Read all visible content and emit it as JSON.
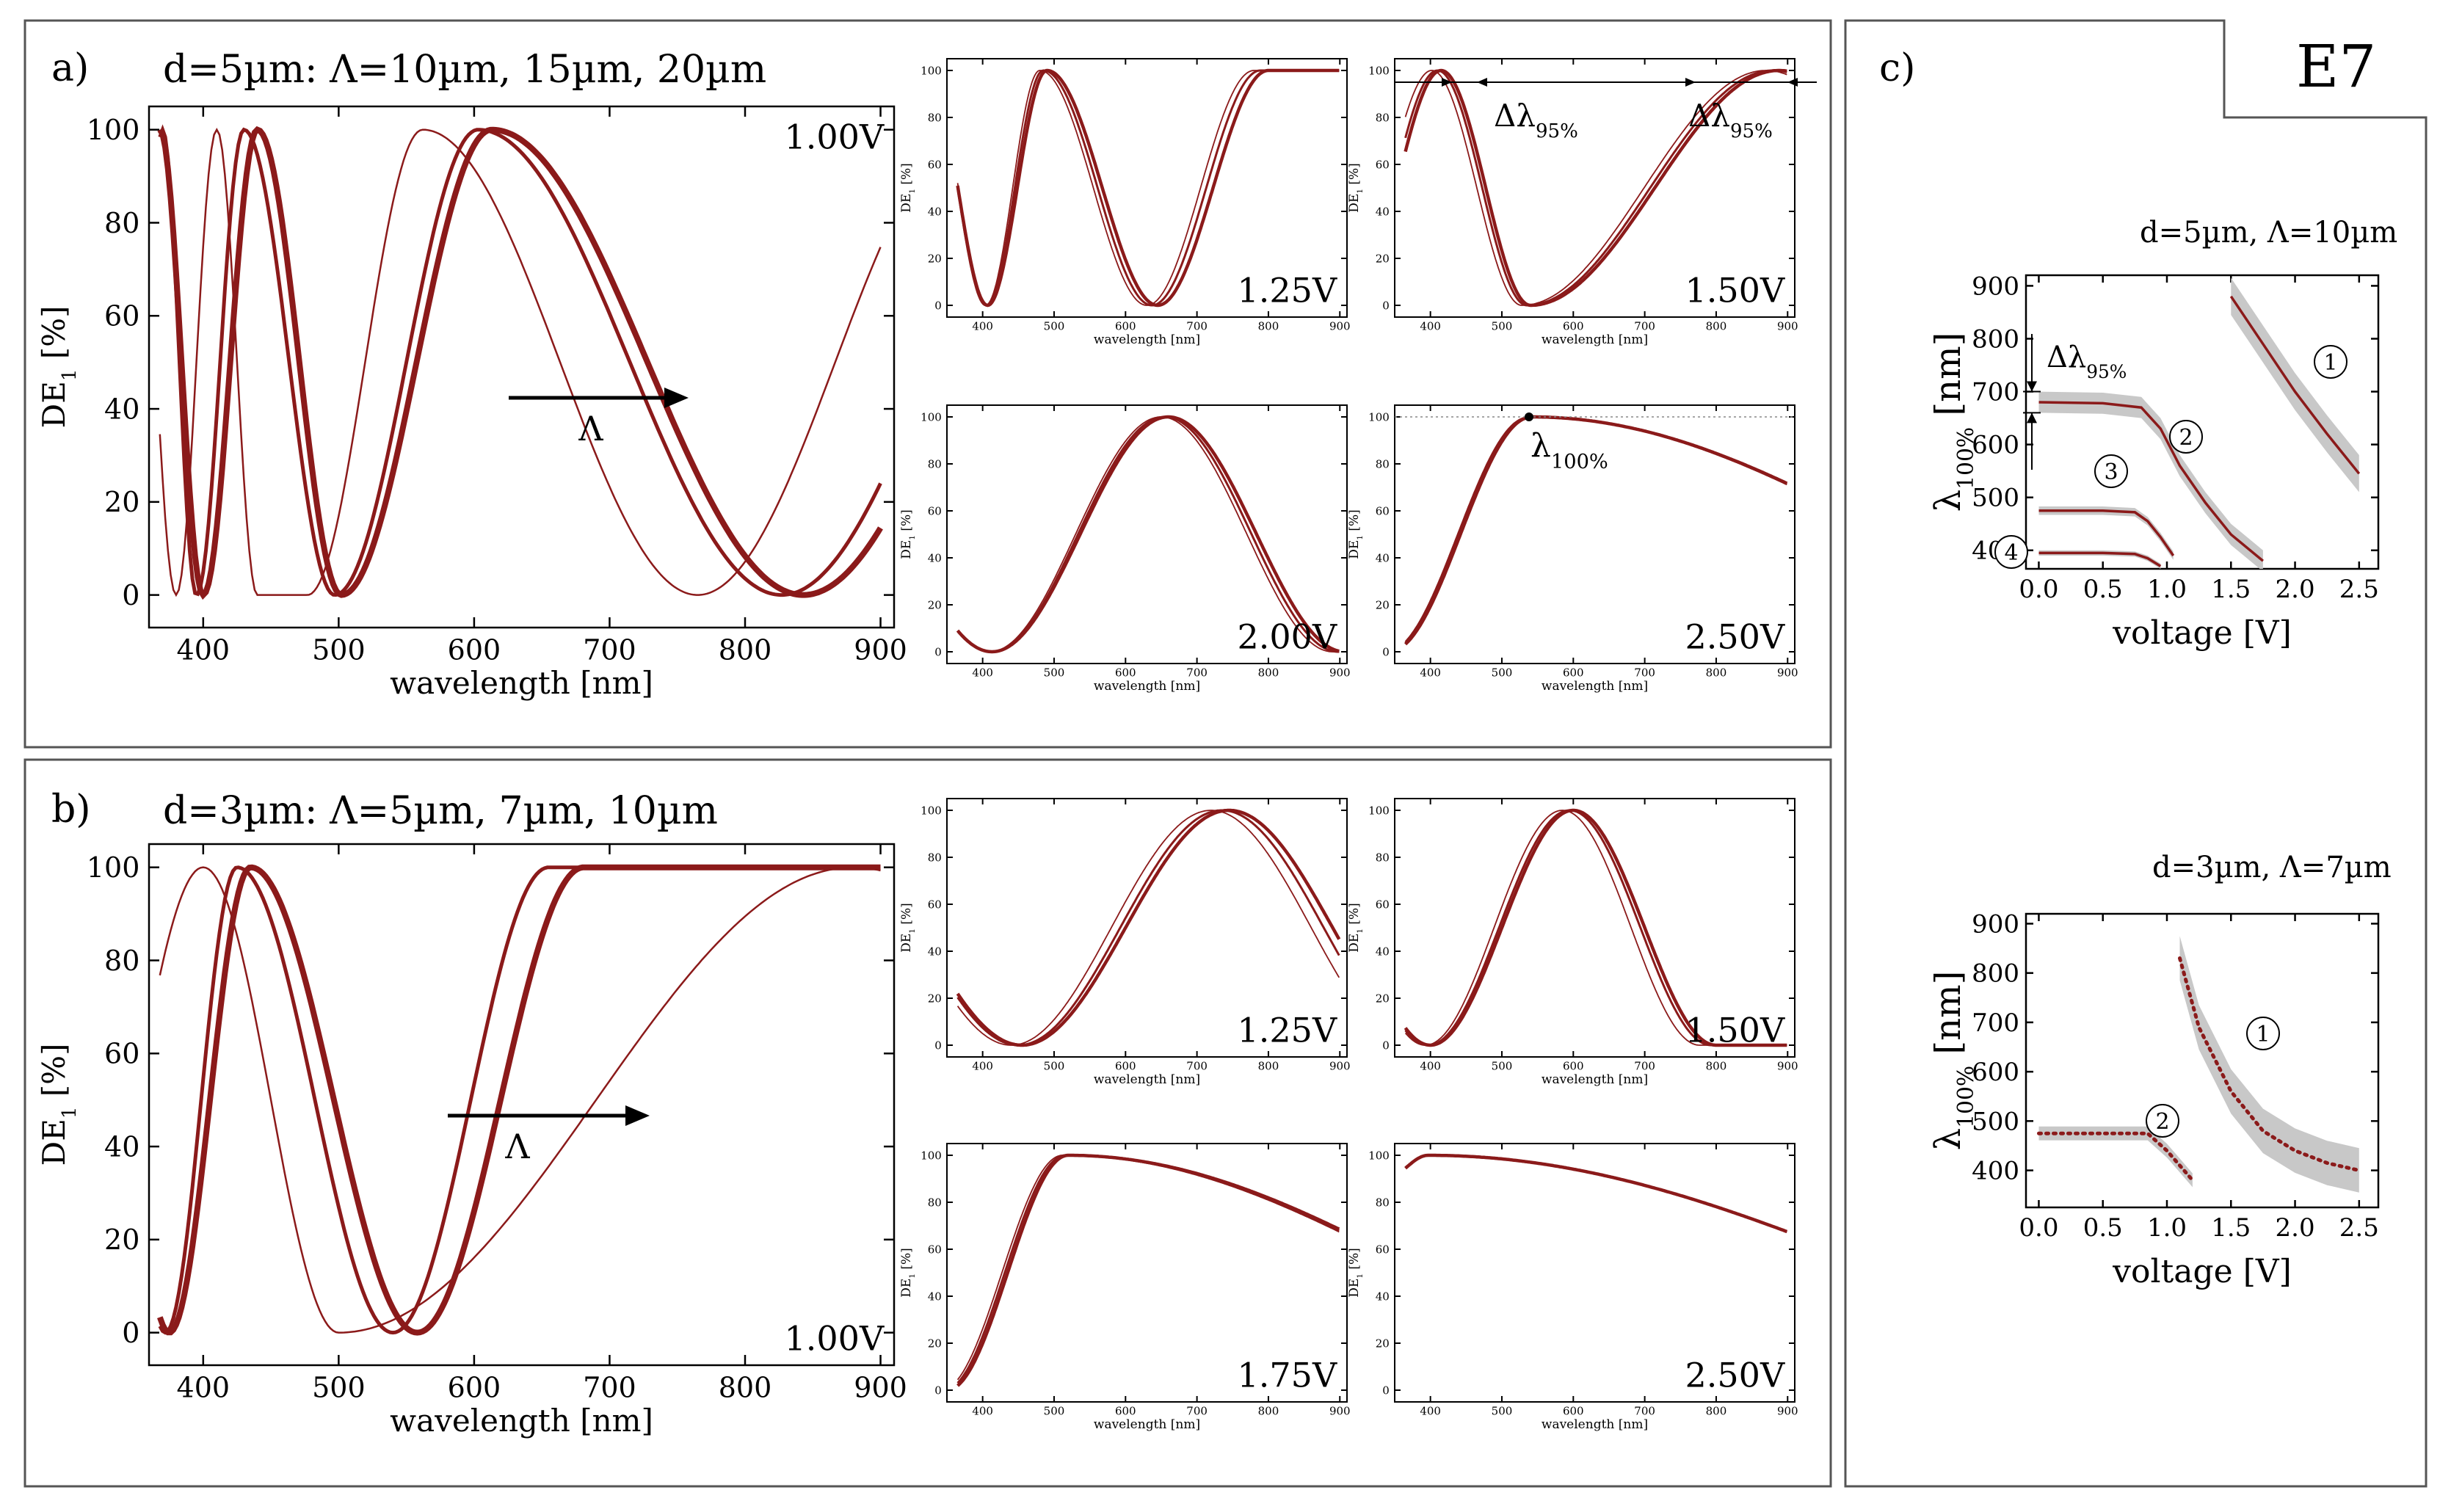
{
  "figure": {
    "panel_labels": {
      "a": "a)",
      "b": "b)",
      "c": "c)"
    },
    "tag": "E7",
    "titles": {
      "a": "d=5µm: Λ=10µm, 15µm, 20µm",
      "b": "d=3µm: Λ=5µm, 7µm, 10µm",
      "c_top": "d=5µm, Λ=10µm",
      "c_bottom": "d=3µm, Λ=7µm"
    },
    "axis_text": {
      "wavelength_label": "wavelength [nm]",
      "de_label_main": "DE",
      "de_label_sub": "1",
      "de_label_unit": " [%]",
      "voltage_label": "voltage [V]",
      "lambda_label_main": "λ",
      "lambda_label_sub": "100%",
      "lambda_label_unit": " [nm]",
      "lambda_arrow": "Λ"
    },
    "annotations": {
      "delta_main": "Δλ",
      "delta_sub": "95%",
      "lambda100_main": "λ",
      "lambda100_sub": "100%"
    },
    "colors": {
      "curve": "#8b1a1a",
      "band": "#c8c8c8",
      "frame": "#555555"
    }
  },
  "chart_data": [
    {
      "id": "a-main",
      "type": "line",
      "title": "a) d=5µm",
      "voltage": "1.00V",
      "xlabel": "wavelength [nm]",
      "ylabel": "DE1 [%]",
      "xlim": [
        360,
        910
      ],
      "ylim": [
        -7,
        105
      ],
      "xticks": [
        400,
        500,
        600,
        700,
        800,
        900
      ],
      "yticks": [
        0,
        20,
        40,
        60,
        80,
        100
      ],
      "series": [
        {
          "name": "Λ=10µm",
          "minima": [
            380,
            440,
            477,
            765
          ],
          "maxima": [
            410,
            562
          ]
        },
        {
          "name": "Λ=15µm",
          "minima": [
            395,
            497,
            827
          ],
          "maxima": [
            370,
            430,
            603
          ]
        },
        {
          "name": "Λ=20µm",
          "minima": [
            400,
            502,
            843
          ],
          "maxima": [
            368,
            440,
            613
          ]
        }
      ]
    },
    {
      "id": "a-125",
      "type": "line",
      "voltage": "1.25V",
      "xlabel": "wavelength [nm]",
      "xlim": [
        350,
        910
      ],
      "ylim": [
        -5,
        105
      ],
      "xticks": [
        400,
        500,
        600,
        700,
        800,
        900
      ],
      "yticks": [
        0,
        20,
        40,
        60,
        80,
        100
      ],
      "series": [
        {
          "name": "Λ=10µm",
          "minima": [
            404,
            630
          ],
          "maxima": [
            480
          ]
        },
        {
          "name": "Λ=15µm",
          "minima": [
            405,
            637
          ],
          "maxima": [
            485
          ]
        },
        {
          "name": "Λ=20µm",
          "minima": [
            407,
            645
          ],
          "maxima": [
            490
          ]
        }
      ]
    },
    {
      "id": "a-150",
      "type": "line",
      "voltage": "1.50V",
      "xlabel": "wavelength [nm]",
      "xlim": [
        350,
        910
      ],
      "ylim": [
        -5,
        105
      ],
      "xticks": [
        400,
        500,
        600,
        700,
        800,
        900
      ],
      "yticks": [
        0,
        20,
        40,
        60,
        80,
        100
      ],
      "series": [
        {
          "name": "Λ=10µm",
          "minima": [
            528
          ],
          "maxima": [
            402,
            870
          ]
        },
        {
          "name": "Λ=15µm",
          "minima": [
            535
          ],
          "maxima": [
            410,
            880
          ]
        },
        {
          "name": "Λ=20µm",
          "minima": [
            540
          ],
          "maxima": [
            415,
            888
          ]
        }
      ]
    },
    {
      "id": "a-200",
      "type": "line",
      "voltage": "2.00V",
      "xlabel": "wavelength [nm]",
      "xlim": [
        350,
        910
      ],
      "ylim": [
        -5,
        105
      ],
      "xticks": [
        400,
        500,
        600,
        700,
        800,
        900
      ],
      "yticks": [
        0,
        20,
        40,
        60,
        80,
        100
      ],
      "series": [
        {
          "name": "Λ=10µm",
          "minima": [
            410
          ],
          "maxima": [
            650
          ]
        },
        {
          "name": "Λ=15µm",
          "minima": [
            412
          ],
          "maxima": [
            655
          ]
        },
        {
          "name": "Λ=20µm",
          "minima": [
            413
          ],
          "maxima": [
            660
          ]
        }
      ]
    },
    {
      "id": "a-250",
      "type": "line",
      "voltage": "2.50V",
      "xlabel": "wavelength [nm]",
      "xlim": [
        350,
        910
      ],
      "ylim": [
        -5,
        105
      ],
      "xticks": [
        400,
        500,
        600,
        700,
        800,
        900
      ],
      "yticks": [
        0,
        20,
        40,
        60,
        80,
        100
      ],
      "series": [
        {
          "name": "Λ=10µm",
          "minima": [],
          "maxima": [
            538
          ]
        },
        {
          "name": "Λ=15µm",
          "minima": [],
          "maxima": [
            540
          ]
        },
        {
          "name": "Λ=20µm",
          "minima": [],
          "maxima": [
            542
          ]
        }
      ]
    },
    {
      "id": "b-main",
      "type": "line",
      "title": "b) d=3µm",
      "voltage": "1.00V",
      "xlabel": "wavelength [nm]",
      "ylabel": "DE1 [%]",
      "xlim": [
        360,
        910
      ],
      "ylim": [
        -7,
        105
      ],
      "xticks": [
        400,
        500,
        600,
        700,
        800,
        900
      ],
      "yticks": [
        0,
        20,
        40,
        60,
        80,
        100
      ],
      "series": [
        {
          "name": "Λ=5µm",
          "minima": [
            500
          ],
          "maxima": [
            400,
            880
          ]
        },
        {
          "name": "Λ=7µm",
          "minima": [
            372,
            540
          ],
          "maxima": [
            425
          ]
        },
        {
          "name": "Λ=10µm",
          "minima": [
            375,
            558
          ],
          "maxima": [
            435
          ]
        }
      ]
    },
    {
      "id": "b-125",
      "type": "line",
      "voltage": "1.25V",
      "xlabel": "wavelength [nm]",
      "xlim": [
        350,
        910
      ],
      "ylim": [
        -5,
        105
      ],
      "xticks": [
        400,
        500,
        600,
        700,
        800,
        900
      ],
      "yticks": [
        0,
        20,
        40,
        60,
        80,
        100
      ],
      "series": [
        {
          "name": "Λ=5µm",
          "minima": [
            440
          ],
          "maxima": [
            720
          ]
        },
        {
          "name": "Λ=7µm",
          "minima": [
            450
          ],
          "maxima": [
            735
          ]
        },
        {
          "name": "Λ=10µm",
          "minima": [
            455
          ],
          "maxima": [
            745
          ]
        }
      ]
    },
    {
      "id": "b-150",
      "type": "line",
      "voltage": "1.50V",
      "xlabel": "wavelength [nm]",
      "xlim": [
        350,
        910
      ],
      "ylim": [
        -5,
        105
      ],
      "xticks": [
        400,
        500,
        600,
        700,
        800,
        900
      ],
      "yticks": [
        0,
        20,
        40,
        60,
        80,
        100
      ],
      "series": [
        {
          "name": "Λ=5µm",
          "minima": [
            393
          ],
          "maxima": [
            585
          ]
        },
        {
          "name": "Λ=7µm",
          "minima": [
            397
          ],
          "maxima": [
            595
          ]
        },
        {
          "name": "Λ=10µm",
          "minima": [
            400
          ],
          "maxima": [
            600
          ]
        }
      ]
    },
    {
      "id": "b-175",
      "type": "line",
      "voltage": "1.75V",
      "xlabel": "wavelength [nm]",
      "xlim": [
        350,
        910
      ],
      "ylim": [
        -5,
        105
      ],
      "xticks": [
        400,
        500,
        600,
        700,
        800,
        900
      ],
      "yticks": [
        0,
        20,
        40,
        60,
        80,
        100
      ],
      "series": [
        {
          "name": "Λ=5µm",
          "minima": [],
          "maxima": [
            512
          ]
        },
        {
          "name": "Λ=7µm",
          "minima": [],
          "maxima": [
            516
          ]
        },
        {
          "name": "Λ=10µm",
          "minima": [],
          "maxima": [
            520
          ]
        }
      ]
    },
    {
      "id": "b-250",
      "type": "line",
      "voltage": "2.50V",
      "xlabel": "wavelength [nm]",
      "xlim": [
        350,
        910
      ],
      "ylim": [
        -5,
        105
      ],
      "xticks": [
        400,
        500,
        600,
        700,
        800,
        900
      ],
      "yticks": [
        0,
        20,
        40,
        60,
        80,
        100
      ],
      "series": [
        {
          "name": "Λ=5µm",
          "minima": [],
          "maxima": [
            395
          ]
        },
        {
          "name": "Λ=7µm",
          "minima": [],
          "maxima": [
            396
          ]
        },
        {
          "name": "Λ=10µm",
          "minima": [],
          "maxima": [
            397
          ]
        }
      ]
    },
    {
      "id": "c-top",
      "type": "line",
      "title": "d=5µm, Λ=10µm",
      "xlabel": "voltage [V]",
      "ylabel": "λ100% [nm]",
      "xlim": [
        -0.1,
        2.65
      ],
      "ylim": [
        365,
        920
      ],
      "xticks": [
        0.0,
        0.5,
        1.0,
        1.5,
        2.0,
        2.5
      ],
      "yticks": [
        400,
        500,
        600,
        700,
        800,
        900
      ],
      "branches": [
        {
          "label": "1",
          "points": [
            [
              1.5,
              880
            ],
            [
              1.75,
              790
            ],
            [
              2.0,
              700
            ],
            [
              2.25,
              620
            ],
            [
              2.5,
              545
            ]
          ],
          "band": 35
        },
        {
          "label": "2",
          "points": [
            [
              0.0,
              680
            ],
            [
              0.5,
              678
            ],
            [
              0.8,
              670
            ],
            [
              0.95,
              630
            ],
            [
              1.1,
              560
            ],
            [
              1.3,
              490
            ],
            [
              1.5,
              430
            ],
            [
              1.75,
              380
            ]
          ],
          "band": 20
        },
        {
          "label": "3",
          "points": [
            [
              0.0,
              475
            ],
            [
              0.5,
              475
            ],
            [
              0.75,
              472
            ],
            [
              0.85,
              455
            ],
            [
              0.95,
              425
            ],
            [
              1.05,
              390
            ]
          ],
          "band": 8
        },
        {
          "label": "4",
          "points": [
            [
              0.0,
              395
            ],
            [
              0.5,
              395
            ],
            [
              0.75,
              393
            ],
            [
              0.85,
              385
            ],
            [
              0.95,
              370
            ]
          ],
          "band": 5
        }
      ],
      "annotation": "Δλ95%"
    },
    {
      "id": "c-bottom",
      "type": "line",
      "title": "d=3µm, Λ=7µm",
      "xlabel": "voltage [V]",
      "ylabel": "λ100% [nm]",
      "xlim": [
        -0.1,
        2.65
      ],
      "ylim": [
        325,
        920
      ],
      "xticks": [
        0.0,
        0.5,
        1.0,
        1.5,
        2.0,
        2.5
      ],
      "yticks": [
        400,
        500,
        600,
        700,
        800,
        900
      ],
      "branches": [
        {
          "label": "1",
          "points": [
            [
              1.1,
              830
            ],
            [
              1.25,
              690
            ],
            [
              1.5,
              560
            ],
            [
              1.75,
              480
            ],
            [
              2.0,
              440
            ],
            [
              2.25,
              415
            ],
            [
              2.5,
              400
            ]
          ],
          "band": 45
        },
        {
          "label": "2",
          "points": [
            [
              0.0,
              475
            ],
            [
              0.5,
              475
            ],
            [
              0.85,
              475
            ],
            [
              1.0,
              440
            ],
            [
              1.1,
              410
            ],
            [
              1.2,
              380
            ]
          ],
          "band": 14
        }
      ]
    }
  ]
}
